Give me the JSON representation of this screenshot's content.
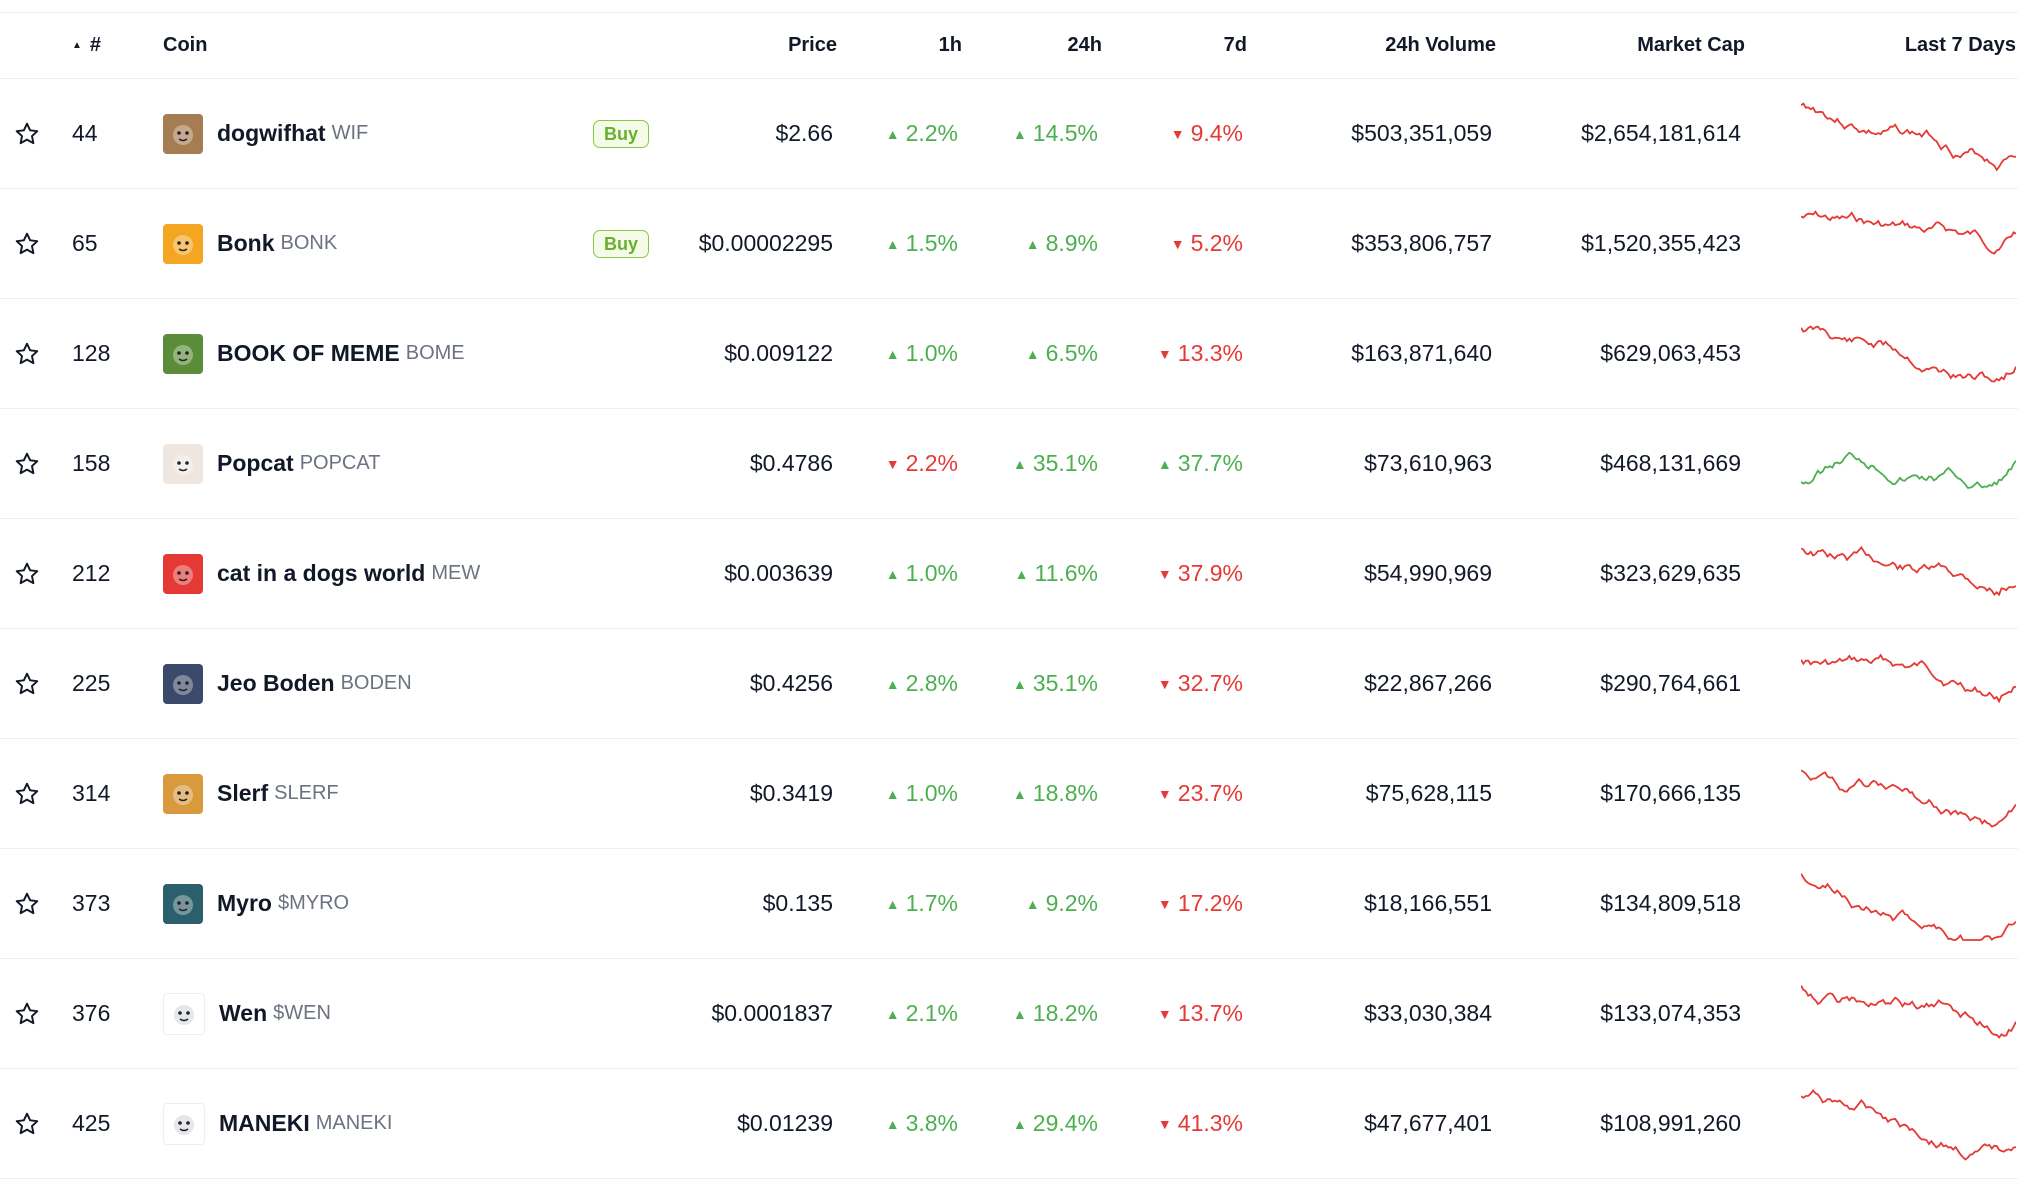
{
  "headers": {
    "rank": "#",
    "coin": "Coin",
    "price": "Price",
    "h1": "1h",
    "h24": "24h",
    "d7": "7d",
    "volume": "24h Volume",
    "mcap": "Market Cap",
    "spark": "Last 7 Days"
  },
  "rows": [
    {
      "rank": "44",
      "name": "dogwifhat",
      "symbol": "WIF",
      "buy": "Buy",
      "price": "$2.66",
      "h1": "2.2%",
      "h1_dir": "up",
      "h24": "14.5%",
      "h24_dir": "up",
      "d7": "9.4%",
      "d7_dir": "down",
      "volume": "$503,351,059",
      "mcap": "$2,654,181,614",
      "logo_color": "#a67c52",
      "logo_icon": "dog-hat-icon",
      "spark_color": "#e53935"
    },
    {
      "rank": "65",
      "name": "Bonk",
      "symbol": "BONK",
      "buy": "Buy",
      "price": "$0.00002295",
      "h1": "1.5%",
      "h1_dir": "up",
      "h24": "8.9%",
      "h24_dir": "up",
      "d7": "5.2%",
      "d7_dir": "down",
      "volume": "$353,806,757",
      "mcap": "$1,520,355,423",
      "logo_color": "#f4a622",
      "logo_icon": "bonk-dog-icon",
      "spark_color": "#e53935"
    },
    {
      "rank": "128",
      "name": "BOOK OF MEME",
      "symbol": "BOME",
      "buy": "",
      "price": "$0.009122",
      "h1": "1.0%",
      "h1_dir": "up",
      "h24": "6.5%",
      "h24_dir": "up",
      "d7": "13.3%",
      "d7_dir": "down",
      "volume": "$163,871,640",
      "mcap": "$629,063,453",
      "logo_color": "#5b8c3a",
      "logo_icon": "pepe-icon",
      "spark_color": "#e53935"
    },
    {
      "rank": "158",
      "name": "Popcat",
      "symbol": "POPCAT",
      "buy": "",
      "price": "$0.4786",
      "h1": "2.2%",
      "h1_dir": "down",
      "h24": "35.1%",
      "h24_dir": "up",
      "d7": "37.7%",
      "d7_dir": "up",
      "volume": "$73,610,963",
      "mcap": "$468,131,669",
      "logo_color": "#eee6df",
      "logo_icon": "cat-icon",
      "spark_color": "#4caf50"
    },
    {
      "rank": "212",
      "name": "cat in a dogs world",
      "symbol": "MEW",
      "buy": "",
      "price": "$0.003639",
      "h1": "1.0%",
      "h1_dir": "up",
      "h24": "11.6%",
      "h24_dir": "up",
      "d7": "37.9%",
      "d7_dir": "down",
      "volume": "$54,990,969",
      "mcap": "$323,629,635",
      "logo_color": "#e53935",
      "logo_icon": "cat-face-icon",
      "spark_color": "#e53935"
    },
    {
      "rank": "225",
      "name": "Jeo Boden",
      "symbol": "BODEN",
      "buy": "",
      "price": "$0.4256",
      "h1": "2.8%",
      "h1_dir": "up",
      "h24": "35.1%",
      "h24_dir": "up",
      "d7": "32.7%",
      "d7_dir": "down",
      "volume": "$22,867,266",
      "mcap": "$290,764,661",
      "logo_color": "#3b4a6b",
      "logo_icon": "man-suit-icon",
      "spark_color": "#e53935"
    },
    {
      "rank": "314",
      "name": "Slerf",
      "symbol": "SLERF",
      "buy": "",
      "price": "$0.3419",
      "h1": "1.0%",
      "h1_dir": "up",
      "h24": "18.8%",
      "h24_dir": "up",
      "d7": "23.7%",
      "d7_dir": "down",
      "volume": "$75,628,115",
      "mcap": "$170,666,135",
      "logo_color": "#d99a3e",
      "logo_icon": "sloth-icon",
      "spark_color": "#e53935"
    },
    {
      "rank": "373",
      "name": "Myro",
      "symbol": "$MYRO",
      "buy": "",
      "price": "$0.135",
      "h1": "1.7%",
      "h1_dir": "up",
      "h24": "9.2%",
      "h24_dir": "up",
      "d7": "17.2%",
      "d7_dir": "down",
      "volume": "$18,166,551",
      "mcap": "$134,809,518",
      "logo_color": "#2b5f6b",
      "logo_icon": "dog-circle-icon",
      "spark_color": "#e53935"
    },
    {
      "rank": "376",
      "name": "Wen",
      "symbol": "$WEN",
      "buy": "",
      "price": "$0.0001837",
      "h1": "2.1%",
      "h1_dir": "up",
      "h24": "18.2%",
      "h24_dir": "up",
      "d7": "13.7%",
      "d7_dir": "down",
      "volume": "$33,030,384",
      "mcap": "$133,074,353",
      "logo_color": "#ffffff",
      "logo_icon": "cat-blue-icon",
      "spark_color": "#e53935"
    },
    {
      "rank": "425",
      "name": "MANEKI",
      "symbol": "MANEKI",
      "buy": "",
      "price": "$0.01239",
      "h1": "3.8%",
      "h1_dir": "up",
      "h24": "29.4%",
      "h24_dir": "up",
      "d7": "41.3%",
      "d7_dir": "down",
      "volume": "$47,677,401",
      "mcap": "$108,991,260",
      "logo_color": "#ffffff",
      "logo_icon": "maneki-cat-icon",
      "spark_color": "#e53935"
    }
  ]
}
